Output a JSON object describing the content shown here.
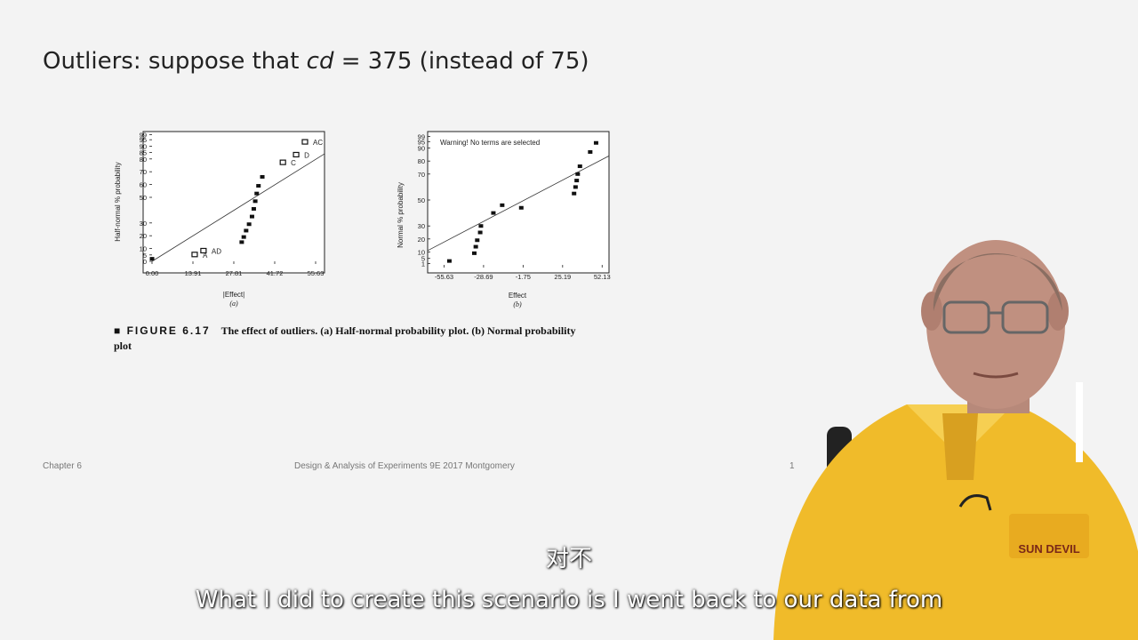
{
  "slide": {
    "title_prefix": "Outliers: suppose that ",
    "title_var": "cd",
    "title_suffix": " = 375 (instead of 75)",
    "figure_label": "FIGURE 6.17",
    "caption": "The effect of outliers. (a) Half-normal probability plot. (b) Normal probability plot",
    "footer_left": "Chapter 6",
    "footer_center": "Design & Analysis of Experiments 9E 2017 Montgomery",
    "footer_right": "1"
  },
  "subtitles": {
    "chinese": "对不",
    "english": "What I did to create this scenario is I went back to our data from"
  },
  "chart_data": [
    {
      "type": "scatter",
      "title": "",
      "xlabel": "|Effect|",
      "ylabel": "Half-normal % probability",
      "panel_label": "(a)",
      "x_ticks": [
        "0.00",
        "13.91",
        "27.81",
        "41.72",
        "55.63"
      ],
      "y_ticks": [
        "99",
        "95",
        "90",
        "85",
        "80",
        "70",
        "60",
        "50",
        "30",
        "20",
        "10",
        "5",
        "0"
      ],
      "xlim": [
        0,
        55.63
      ],
      "points": [
        {
          "x": 0,
          "y": 2
        },
        {
          "x": 14.5,
          "y": 5,
          "label": "A"
        },
        {
          "x": 17.5,
          "y": 8,
          "label": "AD"
        },
        {
          "x": 30.5,
          "y": 15
        },
        {
          "x": 31.2,
          "y": 19
        },
        {
          "x": 32,
          "y": 24
        },
        {
          "x": 33,
          "y": 29
        },
        {
          "x": 34,
          "y": 35
        },
        {
          "x": 34.6,
          "y": 41
        },
        {
          "x": 35.1,
          "y": 47
        },
        {
          "x": 35.6,
          "y": 53
        },
        {
          "x": 36.2,
          "y": 59
        },
        {
          "x": 37.5,
          "y": 66
        },
        {
          "x": 44.5,
          "y": 77,
          "label": "C"
        },
        {
          "x": 49,
          "y": 83,
          "label": "D"
        },
        {
          "x": 52,
          "y": 93,
          "label": "AC"
        }
      ]
    },
    {
      "type": "scatter",
      "title": "Warning! No terms are selected",
      "xlabel": "Effect",
      "ylabel": "Normal % probability",
      "panel_label": "(b)",
      "x_ticks": [
        "-55.63",
        "-28.69",
        "-1.75",
        "25.19",
        "52.13"
      ],
      "y_ticks": [
        "99",
        "95",
        "90",
        "80",
        "70",
        "50",
        "30",
        "20",
        "10",
        "5",
        "1"
      ],
      "xlim": [
        -65,
        55
      ],
      "points": [
        {
          "x": -52,
          "y": 3
        },
        {
          "x": -35,
          "y": 9
        },
        {
          "x": -34,
          "y": 14
        },
        {
          "x": -33,
          "y": 19
        },
        {
          "x": -31,
          "y": 25
        },
        {
          "x": -30.5,
          "y": 30
        },
        {
          "x": -22,
          "y": 40
        },
        {
          "x": -16,
          "y": 46
        },
        {
          "x": -3,
          "y": 44
        },
        {
          "x": 33,
          "y": 55
        },
        {
          "x": 34,
          "y": 60
        },
        {
          "x": 34.8,
          "y": 65
        },
        {
          "x": 35.5,
          "y": 70
        },
        {
          "x": 37,
          "y": 76
        },
        {
          "x": 44,
          "y": 87
        },
        {
          "x": 48,
          "y": 94
        }
      ]
    }
  ]
}
